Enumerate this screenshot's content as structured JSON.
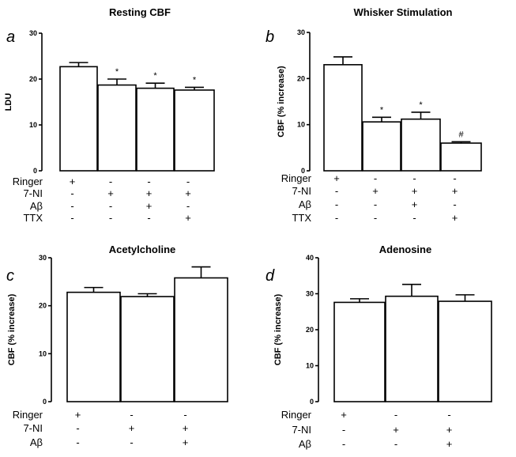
{
  "chart_data": [
    {
      "panel": "a",
      "type": "bar",
      "title": "Resting CBF",
      "ylabel": "LDU",
      "ylim": [
        0,
        30
      ],
      "yticks": [
        "0",
        "10",
        "20",
        "30"
      ],
      "values": [
        22.7,
        18.7,
        18.0,
        17.6
      ],
      "errors": [
        0.9,
        1.3,
        1.1,
        0.6
      ],
      "significance": [
        "",
        "*",
        "*",
        "*"
      ],
      "condition_rows": [
        {
          "label": "Ringer",
          "marks": [
            "+",
            "-",
            "-",
            "-"
          ]
        },
        {
          "label": "7-NI",
          "marks": [
            "-",
            "+",
            "+",
            "+"
          ]
        },
        {
          "label": "Aβ",
          "marks": [
            "-",
            "-",
            "+",
            "-"
          ]
        },
        {
          "label": "TTX",
          "marks": [
            "-",
            "-",
            "-",
            "+"
          ]
        }
      ]
    },
    {
      "panel": "b",
      "type": "bar",
      "title": "Whisker Stimulation",
      "ylabel": "CBF (% increase)",
      "ylim": [
        0,
        30
      ],
      "yticks": [
        "0",
        "10",
        "20",
        "30"
      ],
      "values": [
        23.0,
        10.6,
        11.2,
        6.0
      ],
      "errors": [
        1.7,
        1.0,
        1.5,
        0.3
      ],
      "significance": [
        "",
        "*",
        "*",
        "#"
      ],
      "condition_rows": [
        {
          "label": "Ringer",
          "marks": [
            "+",
            "-",
            "-",
            "-"
          ]
        },
        {
          "label": "7-NI",
          "marks": [
            "-",
            "+",
            "+",
            "+"
          ]
        },
        {
          "label": "Aβ",
          "marks": [
            "-",
            "-",
            "+",
            "-"
          ]
        },
        {
          "label": "TTX",
          "marks": [
            "-",
            "-",
            "-",
            "+"
          ]
        }
      ]
    },
    {
      "panel": "c",
      "type": "bar",
      "title": "Acetylcholine",
      "ylabel": "CBF (% increase)",
      "ylim": [
        0,
        30
      ],
      "yticks": [
        "0",
        "10",
        "20",
        "30"
      ],
      "values": [
        22.8,
        21.9,
        25.8
      ],
      "errors": [
        1.0,
        0.6,
        2.3
      ],
      "significance": [
        "",
        "",
        ""
      ],
      "condition_rows": [
        {
          "label": "Ringer",
          "marks": [
            "+",
            "-",
            "-"
          ]
        },
        {
          "label": "7-NI",
          "marks": [
            "-",
            "+",
            "+"
          ]
        },
        {
          "label": "Aβ",
          "marks": [
            "-",
            "-",
            "+"
          ]
        }
      ]
    },
    {
      "panel": "d",
      "type": "bar",
      "title": "Adenosine",
      "ylabel": "CBF (% increase)",
      "ylim": [
        0,
        40
      ],
      "yticks": [
        "0",
        "10",
        "20",
        "30",
        "40"
      ],
      "values": [
        27.6,
        29.3,
        27.9
      ],
      "errors": [
        1.0,
        3.3,
        1.8
      ],
      "significance": [
        "",
        "",
        ""
      ],
      "condition_rows": [
        {
          "label": "Ringer",
          "marks": [
            "+",
            "-",
            "-"
          ]
        },
        {
          "label": "7-NI",
          "marks": [
            "-",
            "+",
            "+"
          ]
        },
        {
          "label": "Aβ",
          "marks": [
            "-",
            "-",
            "+"
          ]
        }
      ]
    }
  ]
}
